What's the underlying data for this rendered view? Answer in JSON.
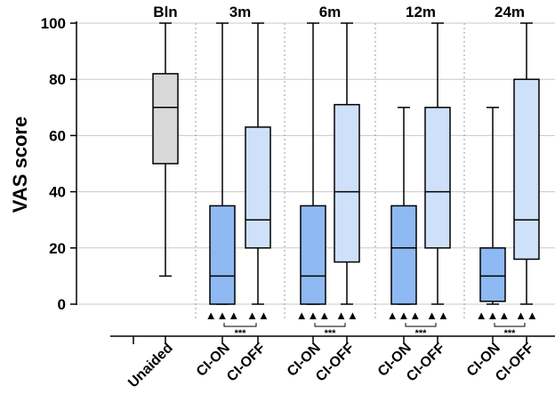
{
  "chart_data": {
    "type": "box",
    "ylabel": "VAS score",
    "ylim": [
      0,
      100
    ],
    "yticks": [
      0,
      20,
      40,
      60,
      80,
      100
    ],
    "grid": true,
    "groups": [
      "Bln",
      "3m",
      "6m",
      "12m",
      "24m"
    ],
    "boxes": [
      {
        "group": "Bln",
        "label": "Unaided",
        "color": "#d9d9d9",
        "min": 10,
        "q1": 50,
        "median": 70,
        "q3": 82,
        "max": 100,
        "markers": ""
      },
      {
        "group": "3m",
        "label": "CI-ON",
        "color": "#8fb9f2",
        "min": 0,
        "q1": 0,
        "median": 10,
        "q3": 35,
        "max": 100,
        "markers": "▲▲▲"
      },
      {
        "group": "3m",
        "label": "CI-OFF",
        "color": "#cfe0fa",
        "min": 0,
        "q1": 20,
        "median": 30,
        "q3": 63,
        "max": 100,
        "markers": "▲▲"
      },
      {
        "group": "6m",
        "label": "CI-ON",
        "color": "#8fb9f2",
        "min": 0,
        "q1": 0,
        "median": 10,
        "q3": 35,
        "max": 100,
        "markers": "▲▲▲"
      },
      {
        "group": "6m",
        "label": "CI-OFF",
        "color": "#cfe0fa",
        "min": 0,
        "q1": 15,
        "median": 40,
        "q3": 71,
        "max": 100,
        "markers": "▲▲"
      },
      {
        "group": "12m",
        "label": "CI-ON",
        "color": "#8fb9f2",
        "min": 0,
        "q1": 0,
        "median": 20,
        "q3": 35,
        "max": 70,
        "markers": "▲▲▲"
      },
      {
        "group": "12m",
        "label": "CI-OFF",
        "color": "#cfe0fa",
        "min": 0,
        "q1": 20,
        "median": 40,
        "q3": 70,
        "max": 100,
        "markers": "▲▲"
      },
      {
        "group": "24m",
        "label": "CI-ON",
        "color": "#8fb9f2",
        "min": 0,
        "q1": 1,
        "median": 10,
        "q3": 20,
        "max": 70,
        "markers": "▲▲▲"
      },
      {
        "group": "24m",
        "label": "CI-OFF",
        "color": "#cfe0fa",
        "min": 0,
        "q1": 16,
        "median": 30,
        "q3": 80,
        "max": 100,
        "markers": "▲▲"
      }
    ],
    "significance": [
      {
        "group": "3m",
        "text": "***"
      },
      {
        "group": "6m",
        "text": "***"
      },
      {
        "group": "12m",
        "text": "***"
      },
      {
        "group": "24m",
        "text": "***"
      }
    ]
  }
}
